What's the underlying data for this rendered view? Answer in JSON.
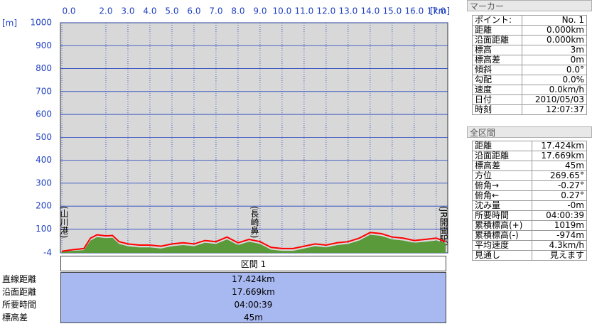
{
  "chart_data": {
    "type": "line",
    "x_unit": "[km]",
    "y_unit": "[m]",
    "xlim": [
      0,
      17.424
    ],
    "ylim": [
      -4,
      1000
    ],
    "xticks": [
      {
        "value": 0,
        "label": "0.0"
      },
      {
        "value": 2,
        "label": "2.0"
      },
      {
        "value": 3,
        "label": "3.0"
      },
      {
        "value": 4,
        "label": "4.0"
      },
      {
        "value": 5,
        "label": "5.0"
      },
      {
        "value": 6,
        "label": "6.0"
      },
      {
        "value": 7,
        "label": "7.0"
      },
      {
        "value": 8,
        "label": "8.0"
      },
      {
        "value": 9,
        "label": "9.0"
      },
      {
        "value": 10,
        "label": "10.0"
      },
      {
        "value": 11,
        "label": "11.0"
      },
      {
        "value": 12,
        "label": "12.0"
      },
      {
        "value": 13,
        "label": "13.0"
      },
      {
        "value": 14,
        "label": "14.0"
      },
      {
        "value": 15,
        "label": "15.0"
      },
      {
        "value": 16,
        "label": "16.0"
      },
      {
        "value": 17,
        "label": "17.0"
      }
    ],
    "yticks": [
      1000,
      900,
      800,
      700,
      600,
      500,
      400,
      300,
      200,
      100,
      -4
    ],
    "grid": true,
    "annotations": [
      "(山川港)",
      "(長崎鼻)",
      "(JR開聞駅)"
    ],
    "x": [
      0,
      0.5,
      1.0,
      1.3,
      1.6,
      2.0,
      2.3,
      2.6,
      3.0,
      3.5,
      4.0,
      4.5,
      5.0,
      5.5,
      6.0,
      6.5,
      7.0,
      7.5,
      8.0,
      8.5,
      9.0,
      9.5,
      10.0,
      10.5,
      11.0,
      11.5,
      12.0,
      12.5,
      13.0,
      13.5,
      14.0,
      14.5,
      15.0,
      15.5,
      16.0,
      16.5,
      17.0,
      17.424
    ],
    "series": [
      {
        "color": "#5a9a3a",
        "fill": true,
        "values": [
          3,
          5,
          8,
          50,
          65,
          60,
          62,
          35,
          25,
          20,
          20,
          15,
          25,
          30,
          25,
          40,
          35,
          55,
          30,
          45,
          35,
          10,
          5,
          5,
          15,
          25,
          20,
          30,
          35,
          50,
          75,
          70,
          55,
          50,
          40,
          45,
          50,
          40
        ]
      },
      {
        "color": "#ff0000",
        "fill": false,
        "values": [
          3,
          10,
          15,
          60,
          75,
          70,
          72,
          45,
          35,
          30,
          30,
          25,
          35,
          40,
          35,
          50,
          45,
          65,
          40,
          55,
          45,
          20,
          15,
          15,
          25,
          35,
          30,
          40,
          45,
          60,
          85,
          80,
          65,
          60,
          50,
          55,
          60,
          45
        ]
      }
    ]
  },
  "section": {
    "title": "区間 1",
    "rows": [
      [
        "直線距離",
        "17.424km"
      ],
      [
        "沿面距離",
        "17.669km"
      ],
      [
        "所要時間",
        "04:00:39"
      ],
      [
        "標高差",
        "45m"
      ]
    ]
  },
  "marker": {
    "title": "マーカー",
    "rows": [
      [
        "ポイント:",
        "No. 1"
      ],
      [
        "距離",
        "0.000km"
      ],
      [
        "沿面距離",
        "0.000km"
      ],
      [
        "標高",
        "3m"
      ],
      [
        "標高差",
        "0m"
      ],
      [
        "傾斜",
        "0.0°"
      ],
      [
        "勾配",
        "0.0%"
      ],
      [
        "速度",
        "0.0km/h"
      ],
      [
        "日付",
        "2010/05/03"
      ],
      [
        "時刻",
        "12:07:37"
      ]
    ]
  },
  "total": {
    "title": "全区間",
    "rows": [
      [
        "距離",
        "17.424km"
      ],
      [
        "沿面距離",
        "17.669km"
      ],
      [
        "標高差",
        "45m"
      ],
      [
        "方位",
        "269.65°"
      ],
      [
        "俯角→",
        "-0.27°"
      ],
      [
        "俯角←",
        "0.27°"
      ],
      [
        "沈み量",
        "-0m"
      ],
      [
        "所要時間",
        "04:00:39"
      ],
      [
        "累積標高(+)",
        "1019m"
      ],
      [
        "累積標高(-)",
        "-974m"
      ],
      [
        "平均速度",
        "4.3km/h"
      ],
      [
        "見通し",
        "見えます"
      ]
    ]
  }
}
